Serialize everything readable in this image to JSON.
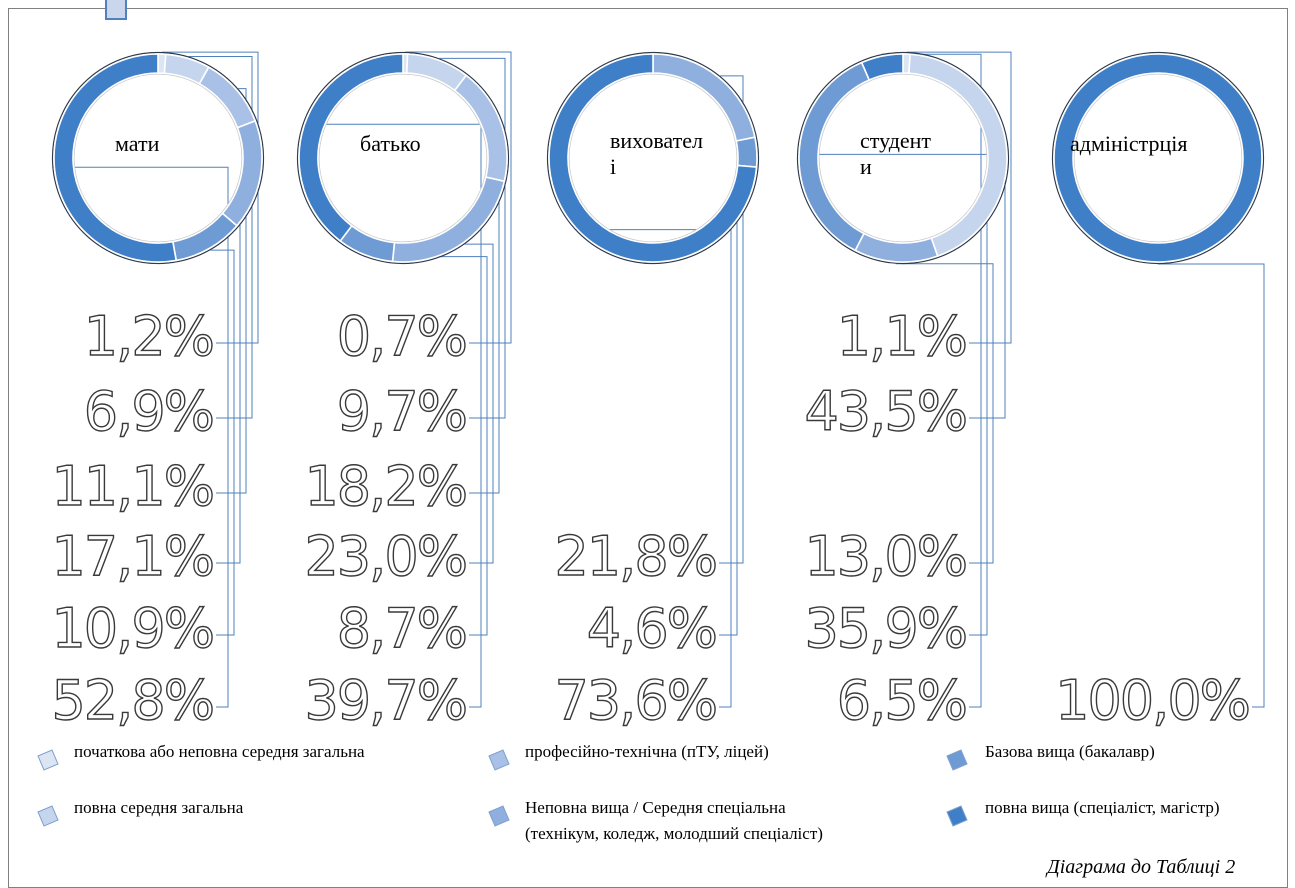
{
  "chart_data": {
    "type": "pie",
    "subtype": "doughnut",
    "title": "",
    "categories": [
      "початкова або неповна середня загальна",
      "повна середня загальна",
      "професійно-технічна (пТУ, ліцей)",
      "Неповна вища / Середня спеціальна (технікум, коледж, молодший спеціаліст)",
      "Базова вища (бакалавр)",
      "повна вища (спеціаліст, магістр)"
    ],
    "colors": [
      "#dbe5f4",
      "#c6d5ee",
      "#a9c1e6",
      "#8fafde",
      "#6e9bd4",
      "#3f7fc8"
    ],
    "series": [
      {
        "name": "мати",
        "values": [
          1.2,
          6.9,
          11.1,
          17.1,
          10.9,
          52.8
        ],
        "labels": [
          "1,2%",
          "6,9%",
          "11,1%",
          "17,1%",
          "10,9%",
          "52,8%"
        ]
      },
      {
        "name": "батько",
        "values": [
          0.7,
          9.7,
          18.2,
          23.0,
          8.7,
          39.7
        ],
        "labels": [
          "0,7%",
          "9,7%",
          "18,2%",
          "23,0%",
          "8,7%",
          "39,7%"
        ]
      },
      {
        "name": "вихователі",
        "label_lines": [
          "виховател",
          "і"
        ],
        "values": [
          0,
          0,
          0,
          21.8,
          4.6,
          73.6
        ],
        "labels": [
          "",
          "",
          "",
          "21,8%",
          "4,6%",
          "73,6%"
        ]
      },
      {
        "name": "студенти",
        "label_lines": [
          "студент",
          "и"
        ],
        "values": [
          1.1,
          43.5,
          0,
          13.0,
          35.9,
          6.5
        ],
        "labels": [
          "1,1%",
          "43,5%",
          "",
          "13,0%",
          "35,9%",
          "6,5%"
        ]
      },
      {
        "name": "адміністрція",
        "label_lines": [
          "адміністрція"
        ],
        "values": [
          0,
          0,
          0,
          0,
          0,
          100.0
        ],
        "labels": [
          "",
          "",
          "",
          "",
          "",
          "100,0%"
        ]
      }
    ],
    "legend_position": "bottom",
    "grid": false
  },
  "legend": {
    "items": [
      [
        "початкова або неповна середня загальна"
      ],
      [
        "повна середня загальна"
      ],
      [
        "професійно-технічна (пТУ, ліцей)"
      ],
      [
        "Неповна вища / Середня спеціальна",
        "(технікум, коледж, молодший спеціаліст)"
      ],
      [
        "Базова вища (бакалавр)"
      ],
      [
        "повна вища (спеціаліст, магістр)"
      ]
    ]
  },
  "caption": "Діаграма до Таблиці 2"
}
